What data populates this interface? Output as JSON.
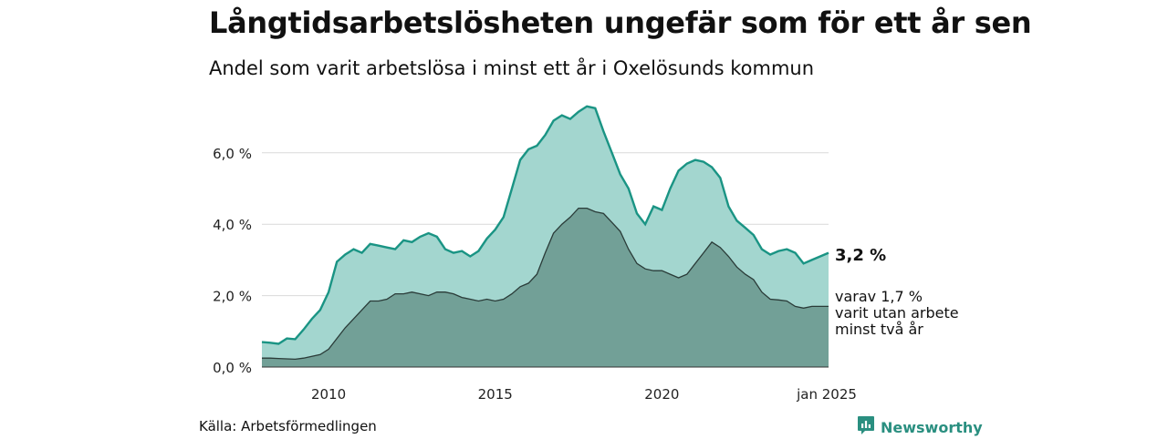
{
  "title": "Långtidsarbetslösheten ungefär som för ett år sen",
  "subtitle": "Andel som varit arbetslösa i minst ett år i Oxelösunds kommun",
  "source": "Källa: Arbetsförmedlingen",
  "brand": "Newsworthy",
  "colors": {
    "total_fill": "#a3d6cf",
    "total_line": "#1a9484",
    "sub_fill": "#72a097",
    "sub_line": "#2a3b38",
    "grid": "#d9d9d9",
    "brand": "#2a8f80"
  },
  "chart_data": {
    "type": "area",
    "x_ticks": [
      "2010",
      "2015",
      "2020",
      "jan 2025"
    ],
    "x_tick_dates": [
      2010.0,
      2015.0,
      2020.0,
      2025.0
    ],
    "y_ticks": [
      "0,0 %",
      "2,0 %",
      "4,0 %",
      "6,0 %"
    ],
    "y_tick_values": [
      0,
      2,
      4,
      6
    ],
    "ylim": [
      0,
      7.5
    ],
    "xlim": [
      2008.0,
      2025.0
    ],
    "grid": true,
    "end_labels": {
      "total": "3,2 %",
      "sub_lines": [
        "varav 1,7 %",
        "varit utan arbete",
        "minst två år"
      ]
    },
    "series": [
      {
        "key": "total",
        "x": [
          2008.0,
          2008.25,
          2008.5,
          2008.75,
          2009.0,
          2009.25,
          2009.5,
          2009.75,
          2010.0,
          2010.25,
          2010.5,
          2010.75,
          2011.0,
          2011.25,
          2011.5,
          2011.75,
          2012.0,
          2012.25,
          2012.5,
          2012.75,
          2013.0,
          2013.25,
          2013.5,
          2013.75,
          2014.0,
          2014.25,
          2014.5,
          2014.75,
          2015.0,
          2015.25,
          2015.5,
          2015.75,
          2016.0,
          2016.25,
          2016.5,
          2016.75,
          2017.0,
          2017.25,
          2017.5,
          2017.75,
          2018.0,
          2018.25,
          2018.5,
          2018.75,
          2019.0,
          2019.25,
          2019.5,
          2019.75,
          2020.0,
          2020.25,
          2020.5,
          2020.75,
          2021.0,
          2021.25,
          2021.5,
          2021.75,
          2022.0,
          2022.25,
          2022.5,
          2022.75,
          2023.0,
          2023.25,
          2023.5,
          2023.75,
          2024.0,
          2024.25,
          2024.5,
          2024.75,
          2025.0
        ],
        "values": [
          0.7,
          0.68,
          0.65,
          0.8,
          0.78,
          1.05,
          1.35,
          1.6,
          2.1,
          2.95,
          3.15,
          3.3,
          3.2,
          3.45,
          3.4,
          3.35,
          3.3,
          3.55,
          3.5,
          3.65,
          3.75,
          3.65,
          3.3,
          3.2,
          3.25,
          3.1,
          3.25,
          3.6,
          3.85,
          4.2,
          5.0,
          5.8,
          6.1,
          6.2,
          6.5,
          6.9,
          7.05,
          6.95,
          7.15,
          7.3,
          7.25,
          6.6,
          6.0,
          5.4,
          5.0,
          4.3,
          4.0,
          4.5,
          4.4,
          5.0,
          5.5,
          5.7,
          5.8,
          5.75,
          5.6,
          5.3,
          4.5,
          4.1,
          3.9,
          3.7,
          3.3,
          3.15,
          3.25,
          3.3,
          3.2,
          2.9,
          3.0,
          3.1,
          3.2
        ]
      },
      {
        "key": "sub",
        "x": [
          2008.0,
          2008.25,
          2008.5,
          2008.75,
          2009.0,
          2009.25,
          2009.5,
          2009.75,
          2010.0,
          2010.25,
          2010.5,
          2010.75,
          2011.0,
          2011.25,
          2011.5,
          2011.75,
          2012.0,
          2012.25,
          2012.5,
          2012.75,
          2013.0,
          2013.25,
          2013.5,
          2013.75,
          2014.0,
          2014.25,
          2014.5,
          2014.75,
          2015.0,
          2015.25,
          2015.5,
          2015.75,
          2016.0,
          2016.25,
          2016.5,
          2016.75,
          2017.0,
          2017.25,
          2017.5,
          2017.75,
          2018.0,
          2018.25,
          2018.5,
          2018.75,
          2019.0,
          2019.25,
          2019.5,
          2019.75,
          2020.0,
          2020.25,
          2020.5,
          2020.75,
          2021.0,
          2021.25,
          2021.5,
          2021.75,
          2022.0,
          2022.25,
          2022.5,
          2022.75,
          2023.0,
          2023.25,
          2023.5,
          2023.75,
          2024.0,
          2024.25,
          2024.5,
          2024.75,
          2025.0
        ],
        "values": [
          0.25,
          0.25,
          0.24,
          0.23,
          0.22,
          0.25,
          0.3,
          0.35,
          0.5,
          0.8,
          1.1,
          1.35,
          1.6,
          1.85,
          1.85,
          1.9,
          2.05,
          2.05,
          2.1,
          2.05,
          2.0,
          2.1,
          2.1,
          2.05,
          1.95,
          1.9,
          1.85,
          1.9,
          1.85,
          1.9,
          2.05,
          2.25,
          2.35,
          2.6,
          3.2,
          3.75,
          4.0,
          4.2,
          4.45,
          4.45,
          4.35,
          4.3,
          4.05,
          3.8,
          3.3,
          2.9,
          2.75,
          2.7,
          2.7,
          2.6,
          2.5,
          2.6,
          2.9,
          3.2,
          3.5,
          3.35,
          3.1,
          2.8,
          2.6,
          2.45,
          2.1,
          1.9,
          1.88,
          1.85,
          1.7,
          1.65,
          1.7,
          1.7,
          1.7
        ]
      }
    ]
  }
}
